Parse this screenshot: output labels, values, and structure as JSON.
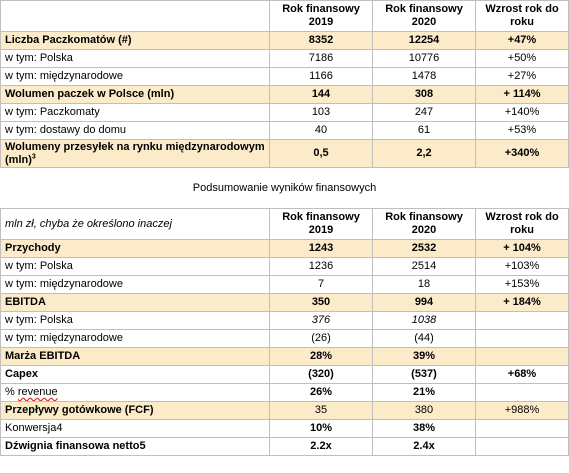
{
  "table1": {
    "header": [
      "",
      "Rok finansowy 2019",
      "Rok finansowy 2020",
      "Wzrost rok do roku"
    ],
    "rows": [
      {
        "label": "Liczba Paczkomatów (#)",
        "v2019": "8352",
        "v2020": "12254",
        "growth": "+47%"
      },
      {
        "label": "w tym: Polska",
        "v2019": "7186",
        "v2020": "10776",
        "growth": "+50%"
      },
      {
        "label": "w tym: międzynarodowe",
        "v2019": "1166",
        "v2020": "1478",
        "growth": "+27%"
      },
      {
        "label": "Wolumen paczek w Polsce (mln)",
        "v2019": "144",
        "v2020": "308",
        "growth": "+ 114%"
      },
      {
        "label": "w tym: Paczkomaty",
        "v2019": "103",
        "v2020": "247",
        "growth": "+140%"
      },
      {
        "label": "w tym: dostawy do domu",
        "v2019": "40",
        "v2020": "61",
        "growth": "+53%"
      },
      {
        "label": "Wolumeny przesyłek na rynku międzynarodowym (mln)",
        "label_sup": "3",
        "v2019": "0,5",
        "v2020": "2,2",
        "growth": "+340%"
      }
    ]
  },
  "section_title": "Podsumowanie wyników finansowych",
  "table2": {
    "header": [
      "mln zł, chyba że określono inaczej",
      "Rok finansowy 2019",
      "Rok finansowy 2020",
      "Wzrost rok do roku"
    ],
    "rows": [
      {
        "label": "Przychody",
        "v2019": "1243",
        "v2020": "2532",
        "growth": "+ 104%"
      },
      {
        "label": "w tym: Polska",
        "v2019": "1236",
        "v2020": "2514",
        "growth": "+103%"
      },
      {
        "label": "w tym: międzynarodowe",
        "v2019": "7",
        "v2020": "18",
        "growth": "+153%"
      },
      {
        "label": "EBITDA",
        "v2019": "350",
        "v2020": "994",
        "growth": "+ 184%"
      },
      {
        "label": "w tym: Polska",
        "v2019": "376",
        "v2020": "1038",
        "growth": ""
      },
      {
        "label": "w tym: międzynarodowe",
        "v2019": "(26)",
        "v2020": "(44)",
        "growth": ""
      },
      {
        "label": "Marża EBITDA",
        "v2019": "28%",
        "v2020": "39%",
        "growth": ""
      },
      {
        "label": "Capex",
        "v2019": "(320)",
        "v2020": "(537)",
        "growth": "+68%"
      },
      {
        "label_pre": "% ",
        "label": "revenue",
        "v2019": "26%",
        "v2020": "21%",
        "growth": ""
      },
      {
        "label": "Przepływy gotówkowe (FCF)",
        "v2019": "35",
        "v2020": "380",
        "growth": "+988%"
      },
      {
        "label": "Konwersja4",
        "v2019": "10%",
        "v2020": "38%",
        "growth": ""
      },
      {
        "label": "Dźwignia finansowa netto5",
        "v2019": "2.2x",
        "v2020": "2.4x",
        "growth": ""
      }
    ]
  },
  "colors": {
    "highlight_row": "#fcebc9",
    "grid": "#bfbfbf"
  }
}
